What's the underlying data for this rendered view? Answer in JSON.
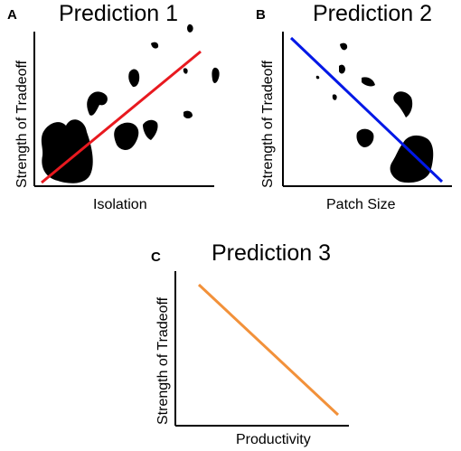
{
  "figure": {
    "panels": [
      {
        "letter": "A",
        "title": "Prediction 1",
        "xlabel": "Isolation",
        "ylabel": "Strength of Tradeoff",
        "trend": "positive",
        "line_color": "#e8191f",
        "has_blobs": true
      },
      {
        "letter": "B",
        "title": "Prediction 2",
        "xlabel": "Patch Size",
        "ylabel": "Strength of Tradeoff",
        "trend": "negative",
        "line_color": "#0018e6",
        "has_blobs": true
      },
      {
        "letter": "C",
        "title": "Prediction 3",
        "xlabel": "Productivity",
        "ylabel": "Strength of Tradeoff",
        "trend": "negative",
        "line_color": "#f2913a",
        "has_blobs": false
      }
    ],
    "axis_color": "#000000",
    "blob_color": "#000000"
  }
}
